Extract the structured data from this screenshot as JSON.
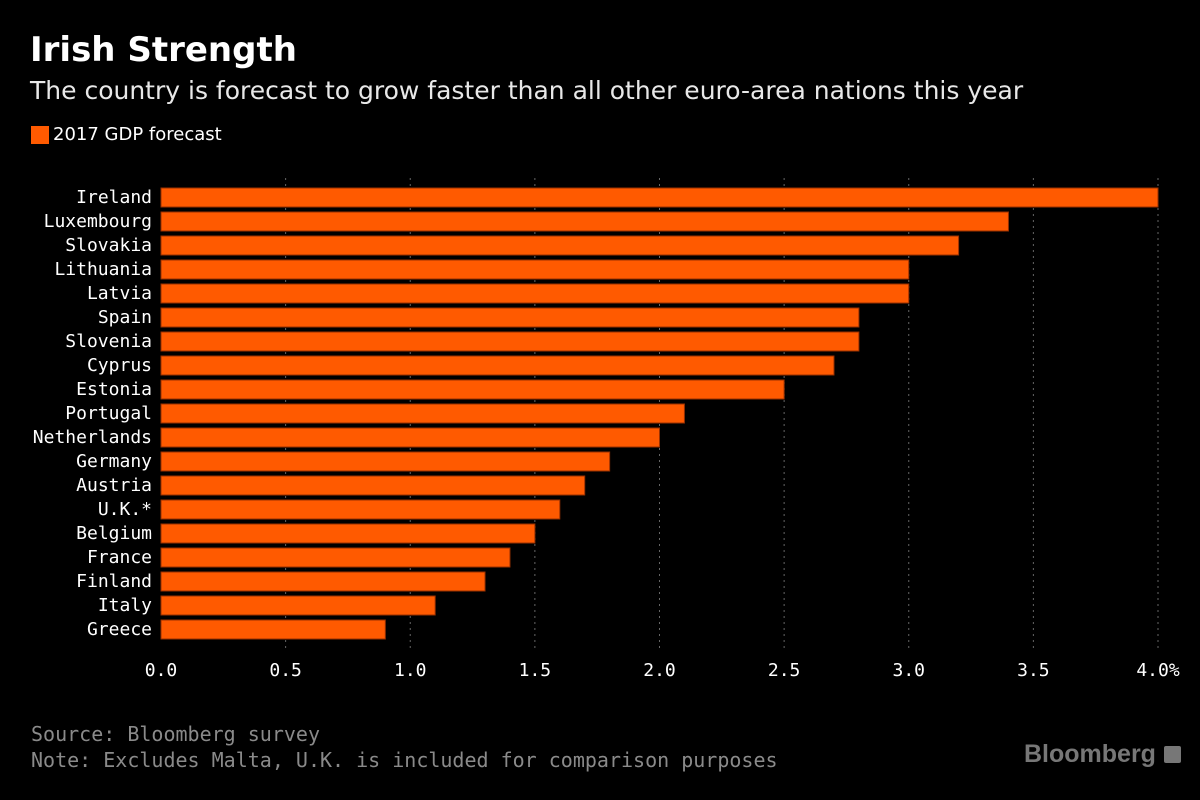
{
  "header": {
    "title": "Irish Strength",
    "subtitle": "The country is forecast to grow faster than all other euro-area nations this year"
  },
  "chart_data": {
    "type": "bar",
    "orientation": "horizontal",
    "title": "Irish Strength",
    "subtitle": "The country is forecast to grow faster than all other euro-area nations this year",
    "legend": [
      {
        "label": "2017 GDP forecast",
        "color": "#ff5a00"
      }
    ],
    "legend_placement": "top-left",
    "categories": [
      "Ireland",
      "Luxembourg",
      "Slovakia",
      "Lithuania",
      "Latvia",
      "Spain",
      "Slovenia",
      "Cyprus",
      "Estonia",
      "Portugal",
      "Netherlands",
      "Germany",
      "Austria",
      "U.K.*",
      "Belgium",
      "France",
      "Finland",
      "Italy",
      "Greece"
    ],
    "series": [
      {
        "name": "2017 GDP forecast",
        "values": [
          4.0,
          3.4,
          3.2,
          3.0,
          3.0,
          2.8,
          2.8,
          2.7,
          2.5,
          2.1,
          2.0,
          1.8,
          1.7,
          1.6,
          1.5,
          1.4,
          1.3,
          1.1,
          0.9
        ]
      }
    ],
    "xlim": [
      0,
      4.0
    ],
    "xticks": [
      "0.0",
      "0.5",
      "1.0",
      "1.5",
      "2.0",
      "2.5",
      "3.0",
      "3.5",
      "4.0%"
    ],
    "xtick_values": [
      0,
      0.5,
      1,
      1.5,
      2,
      2.5,
      3,
      3.5,
      4
    ],
    "grid": "vertical dotted",
    "xlabel": "",
    "ylabel": ""
  },
  "footer": {
    "source": "Source: Bloomberg survey",
    "note": "Note: Excludes Malta, U.K. is included for comparison purposes",
    "brand": "Bloomberg"
  },
  "colors": {
    "bar": "#ff5a00",
    "background": "#000000",
    "grid": "#666666"
  }
}
